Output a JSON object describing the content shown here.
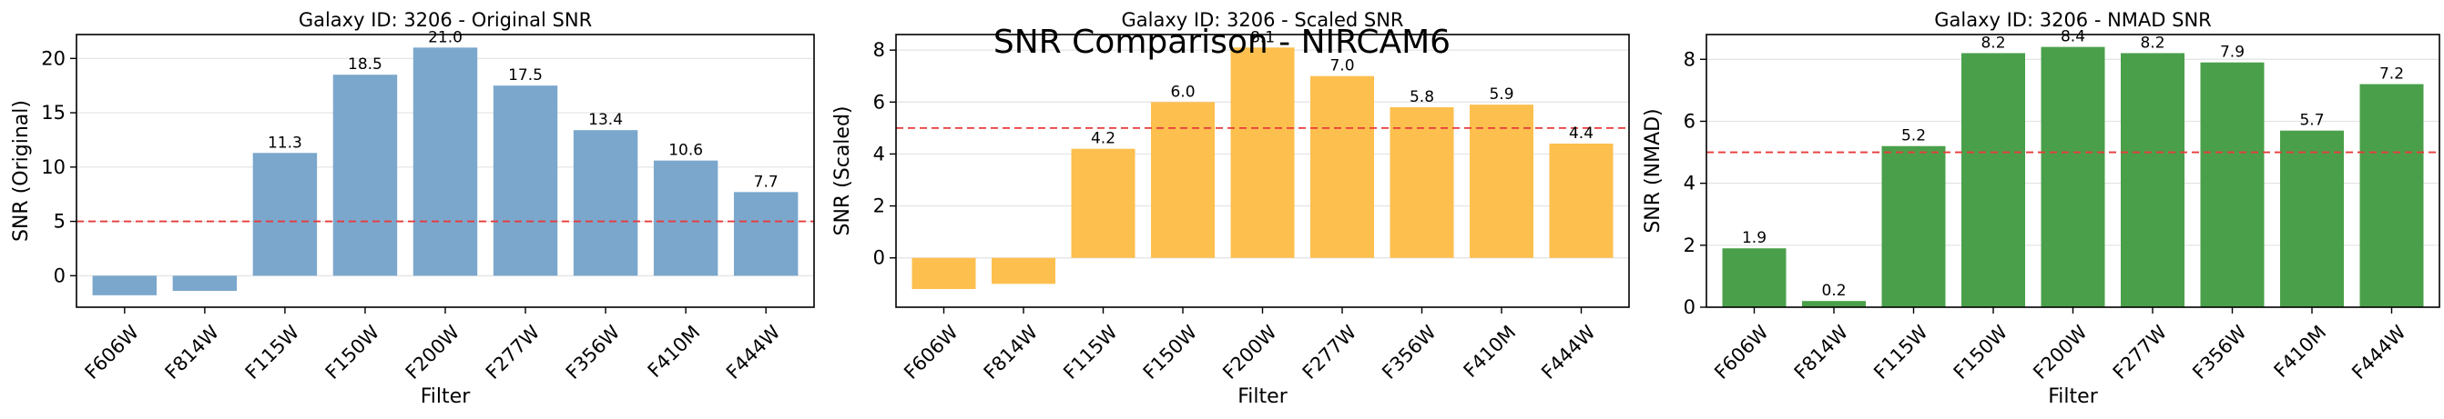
{
  "suptitle": "SNR Comparison - NIRCAM6",
  "chart_data": [
    {
      "type": "bar",
      "title": "Galaxy ID: 3206 - Original SNR",
      "xlabel": "Filter",
      "ylabel": "SNR (Original)",
      "categories": [
        "F606W",
        "F814W",
        "F115W",
        "F150W",
        "F200W",
        "F277W",
        "F356W",
        "F410M",
        "F444W"
      ],
      "values": [
        -1.8,
        -1.4,
        11.3,
        18.5,
        21.0,
        17.5,
        13.4,
        10.6,
        7.7
      ],
      "data_labels": [
        "",
        "",
        "11.3",
        "18.5",
        "21.0",
        "17.5",
        "13.4",
        "10.6",
        "7.7"
      ],
      "ylim": [
        -2.9,
        22.2
      ],
      "yticks": [
        0,
        5,
        10,
        15,
        20
      ],
      "threshold": 5,
      "color": "#7ba7cc",
      "grid": "y"
    },
    {
      "type": "bar",
      "title": "Galaxy ID: 3206 - Scaled SNR",
      "xlabel": "Filter",
      "ylabel": "SNR (Scaled)",
      "categories": [
        "F606W",
        "F814W",
        "F115W",
        "F150W",
        "F200W",
        "F277W",
        "F356W",
        "F410M",
        "F444W"
      ],
      "values": [
        -1.2,
        -1.0,
        4.2,
        6.0,
        8.1,
        7.0,
        5.8,
        5.9,
        4.4
      ],
      "data_labels": [
        "",
        "",
        "4.2",
        "6.0",
        "8.1",
        "7.0",
        "5.8",
        "5.9",
        "4.4"
      ],
      "ylim": [
        -1.9,
        8.6
      ],
      "yticks": [
        0,
        2,
        4,
        6,
        8
      ],
      "threshold": 5,
      "color": "#fdbf4e",
      "grid": "y"
    },
    {
      "type": "bar",
      "title": "Galaxy ID: 3206 - NMAD SNR",
      "xlabel": "Filter",
      "ylabel": "SNR (NMAD)",
      "categories": [
        "F606W",
        "F814W",
        "F115W",
        "F150W",
        "F200W",
        "F277W",
        "F356W",
        "F410M",
        "F444W"
      ],
      "values": [
        1.9,
        0.2,
        5.2,
        8.2,
        8.4,
        8.2,
        7.9,
        5.7,
        7.2
      ],
      "data_labels": [
        "1.9",
        "0.2",
        "5.2",
        "8.2",
        "8.4",
        "8.2",
        "7.9",
        "5.7",
        "7.2"
      ],
      "ylim": [
        0,
        8.8
      ],
      "yticks": [
        0,
        2,
        4,
        6,
        8
      ],
      "threshold": 5,
      "color": "#4aa04a",
      "grid": "y"
    }
  ]
}
